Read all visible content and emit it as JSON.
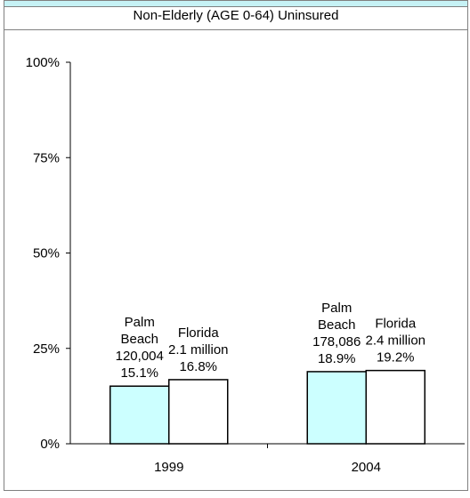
{
  "chart_data": {
    "type": "bar",
    "title": "Non-Elderly (AGE 0-64) Uninsured",
    "categories": [
      "1999",
      "2004"
    ],
    "series": [
      {
        "name": "Palm Beach",
        "color": "#ccffff",
        "values": [
          15.1,
          18.9
        ],
        "labels": [
          [
            "Palm",
            "Beach",
            "120,004",
            "15.1%"
          ],
          [
            "Palm",
            "Beach",
            "178,086",
            "18.9%"
          ]
        ]
      },
      {
        "name": "Florida",
        "color": "#ffffff",
        "values": [
          16.8,
          19.2
        ],
        "labels": [
          [
            "Florida",
            "2.1 million",
            "16.8%"
          ],
          [
            "Florida",
            "2.4 million",
            "19.2%"
          ]
        ]
      }
    ],
    "yticks": [
      "0%",
      "25%",
      "50%",
      "75%",
      "100%"
    ],
    "ylim": [
      0,
      100
    ],
    "xlabel": "",
    "ylabel": ""
  }
}
